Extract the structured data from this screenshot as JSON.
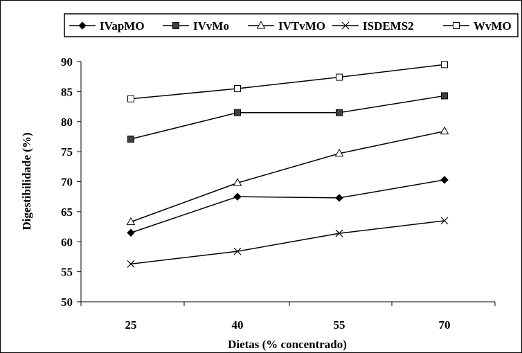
{
  "chart_data": {
    "type": "line",
    "categories": [
      "25",
      "40",
      "55",
      "70"
    ],
    "xlabel": "Dietas (% concentrado)",
    "ylabel": "Digestibilidade (%)",
    "ylim": [
      50,
      90
    ],
    "yticks": [
      50,
      55,
      60,
      65,
      70,
      75,
      80,
      85,
      90
    ],
    "grid": false,
    "legend_position": "top",
    "series": [
      {
        "name": "IVapMO",
        "marker": "diamond-filled",
        "values": [
          61.5,
          67.5,
          67.3,
          70.3
        ]
      },
      {
        "name": "IVvMo",
        "marker": "square-filled",
        "values": [
          77.1,
          81.5,
          81.5,
          84.3
        ]
      },
      {
        "name": "IVTvMO",
        "marker": "triangle-open",
        "values": [
          63.3,
          69.8,
          74.7,
          78.4
        ]
      },
      {
        "name": "ISDEMS2",
        "marker": "x",
        "values": [
          56.3,
          58.4,
          61.4,
          63.5
        ]
      },
      {
        "name": "WvMO",
        "marker": "square-open",
        "values": [
          83.8,
          85.5,
          87.4,
          89.5
        ]
      }
    ]
  }
}
